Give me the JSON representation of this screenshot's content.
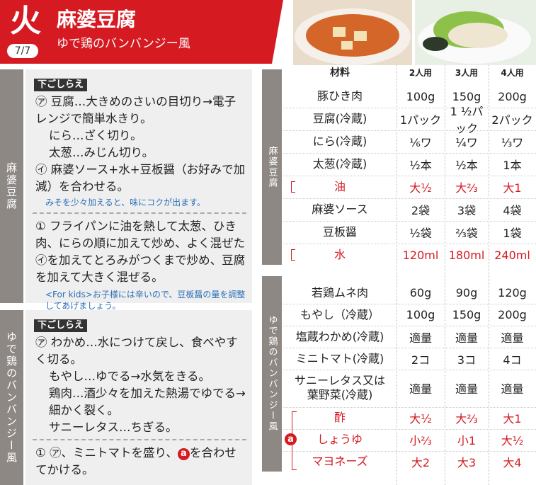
{
  "header": {
    "day": "火",
    "page": "7/7",
    "title": "麻婆豆腐",
    "subtitle": "ゆで鶏のバンバンジー風"
  },
  "sections": [
    {
      "side_label": "麻婆豆腐",
      "prep_tag": "下ごしらえ",
      "prep": [
        {
          "lines": [
            "㋐ 豆腐…大きめのさいの目切り→電子レンジで簡単水きり。",
            "にら…ざく切り。",
            "太葱…みじん切り。"
          ]
        },
        {
          "lines": [
            "㋑ 麻婆ソース+水+豆板醤（お好みで加減）を合わせる。"
          ]
        }
      ],
      "prep_note": "みそを少々加えると、味にコクが出ます。",
      "step": {
        "before": "① フライパンに油を熱して太葱、ひき肉、にらの順に加えて炒め、よく混ぜた㋑を加えてとろみがつくまで炒め、豆腐を加えて大きく混ぜる。"
      },
      "step_note": "<For kids>お子様には辛いので、豆板醤の量を調整してあげましょう。"
    },
    {
      "side_label": "ゆで鶏のバンバンジー風",
      "prep_tag": "下ごしらえ",
      "prep": [
        {
          "lines": [
            "㋐ わかめ…水につけて戻し、食べやすく切る。",
            "もやし…ゆでる→水気をきる。",
            "鶏肉…酒少々を加えた熱湯でゆでる→細かく裂く。",
            "サニーレタス…ちぎる。"
          ]
        }
      ],
      "step": {
        "before": "① ㋐、ミニトマトを盛り、",
        "mark": "a",
        "after": "を合わせてかける。"
      }
    }
  ],
  "ingredients": {
    "header": [
      "材料",
      "2人用",
      "3人用",
      "4人用"
    ],
    "tables": [
      {
        "side_label": "麻婆豆腐",
        "rows": [
          {
            "item": "豚ひき肉",
            "amounts": [
              "100g",
              "150g",
              "200g"
            ]
          },
          {
            "item": "豆腐(冷蔵)",
            "amounts": [
              "1パック",
              "1 ½パック",
              "2パック"
            ]
          },
          {
            "item": "にら(冷蔵)",
            "amounts": [
              "⅙ワ",
              "¼ワ",
              "⅓ワ"
            ]
          },
          {
            "item": "太葱(冷蔵)",
            "amounts": [
              "½本",
              "½本",
              "1本"
            ]
          },
          {
            "item": "油",
            "amounts": [
              "大½",
              "大⅔",
              "大1"
            ],
            "accent": true
          },
          {
            "item": "麻婆ソース",
            "amounts": [
              "2袋",
              "3袋",
              "4袋"
            ]
          },
          {
            "item": "豆板醤",
            "amounts": [
              "½袋",
              "⅔袋",
              "1袋"
            ]
          },
          {
            "item": "水",
            "amounts": [
              "120ml",
              "180ml",
              "240ml"
            ],
            "accent": true
          }
        ]
      },
      {
        "side_label": "ゆで鶏のバンバンジー風",
        "group_mark": "a",
        "rows": [
          {
            "item": "若鶏ムネ肉",
            "amounts": [
              "60g",
              "90g",
              "120g"
            ]
          },
          {
            "item": "もやし（冷蔵）",
            "amounts": [
              "100g",
              "150g",
              "200g"
            ]
          },
          {
            "item": "塩蔵わかめ(冷蔵)",
            "amounts": [
              "適量",
              "適量",
              "適量"
            ]
          },
          {
            "item": "ミニトマト(冷蔵)",
            "amounts": [
              "2コ",
              "3コ",
              "4コ"
            ]
          },
          {
            "item": "サニーレタス又は葉野菜(冷蔵)",
            "amounts": [
              "適量",
              "適量",
              "適量"
            ],
            "tall": true
          },
          {
            "item": "酢",
            "amounts": [
              "大½",
              "大⅔",
              "大1"
            ],
            "accent": true
          },
          {
            "item": "しょうゆ",
            "amounts": [
              "小⅔",
              "小1",
              "大½"
            ],
            "accent": true
          },
          {
            "item": "マヨネーズ",
            "amounts": [
              "大2",
              "大3",
              "大4"
            ],
            "accent": true
          }
        ]
      }
    ]
  }
}
